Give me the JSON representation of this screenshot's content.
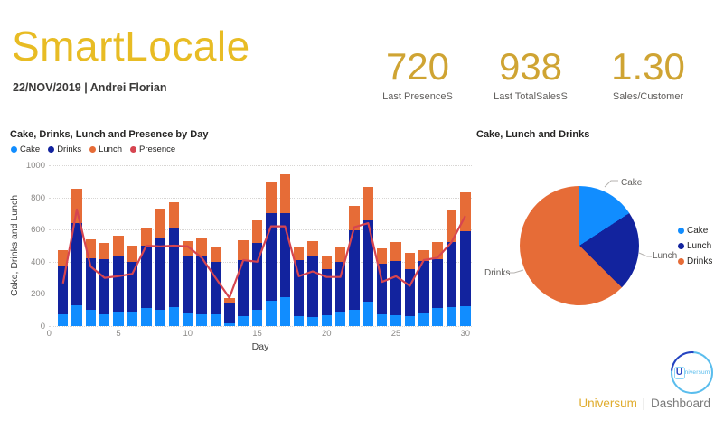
{
  "header": {
    "title": "SmartLocale",
    "subtitle": "22/NOV/2019 | Andrei Florian"
  },
  "kpis": [
    {
      "value": "720",
      "label": "Last PresenceS"
    },
    {
      "value": "938",
      "label": "Last TotalSalesS"
    },
    {
      "value": "1.30",
      "label": "Sales/Customer"
    }
  ],
  "palette": {
    "gold_title": "#E8BC24",
    "gold_kpi": "#CFA433",
    "cake_blue": "#118DFF",
    "drinks_navy": "#12239E",
    "lunch_orange": "#E66C37",
    "presence_red": "#D64550",
    "grid_gray": "#D8D6D4",
    "tick_gray": "#8A8886"
  },
  "chart_data": [
    {
      "type": "bar",
      "title": "Cake, Drinks, Lunch and Presence by Day",
      "xlabel": "Day",
      "ylabel": "Cake, Drinks and Lunch",
      "stacked": true,
      "grid": "dotted-horizontal",
      "legend_position": "top-left",
      "ylim": [
        0,
        1000
      ],
      "y_ticks": [
        0,
        200,
        400,
        600,
        800,
        1000
      ],
      "x_ticks": [
        0,
        5,
        10,
        15,
        20,
        25,
        30
      ],
      "x": [
        1,
        2,
        3,
        4,
        5,
        6,
        7,
        8,
        9,
        10,
        11,
        12,
        13,
        14,
        15,
        16,
        17,
        18,
        19,
        20,
        21,
        22,
        23,
        24,
        25,
        26,
        27,
        28,
        29,
        30
      ],
      "series": [
        {
          "name": "Cake",
          "type": "bar",
          "color": "#118DFF",
          "values": [
            75,
            130,
            100,
            75,
            90,
            90,
            115,
            100,
            120,
            80,
            75,
            75,
            15,
            60,
            100,
            160,
            180,
            60,
            55,
            65,
            90,
            100,
            150,
            75,
            65,
            60,
            80,
            115,
            120,
            125
          ]
        },
        {
          "name": "Drinks",
          "type": "bar",
          "color": "#12239E",
          "values": [
            295,
            510,
            320,
            340,
            350,
            310,
            385,
            450,
            485,
            350,
            360,
            325,
            130,
            350,
            415,
            540,
            525,
            350,
            380,
            290,
            310,
            495,
            505,
            310,
            340,
            295,
            325,
            300,
            405,
            465
          ]
        },
        {
          "name": "Lunch",
          "type": "bar",
          "color": "#E66C37",
          "values": [
            100,
            215,
            120,
            100,
            120,
            100,
            110,
            180,
            165,
            100,
            110,
            95,
            30,
            125,
            140,
            200,
            240,
            85,
            95,
            75,
            90,
            155,
            210,
            100,
            115,
            100,
            65,
            110,
            200,
            240
          ]
        },
        {
          "name": "Presence",
          "type": "line",
          "color": "#D64550",
          "values": [
            265,
            725,
            370,
            300,
            310,
            325,
            500,
            495,
            500,
            495,
            425,
            300,
            175,
            410,
            400,
            620,
            620,
            310,
            340,
            305,
            305,
            615,
            640,
            275,
            310,
            250,
            410,
            425,
            520,
            685
          ]
        }
      ]
    },
    {
      "type": "pie",
      "title": "Cake, Lunch and Drinks",
      "labels": [
        "Cake",
        "Lunch",
        "Drinks"
      ],
      "values_pct": [
        15.8,
        21.6,
        62.6
      ],
      "colors": [
        "#118DFF",
        "#12239E",
        "#E66C37"
      ],
      "legend_position": "right",
      "start_angle_deg": 0
    }
  ],
  "footer": {
    "brand": "Universum",
    "divider": "|",
    "page": "Dashboard",
    "logo_initial": "U",
    "logo_rest": "niversum"
  }
}
